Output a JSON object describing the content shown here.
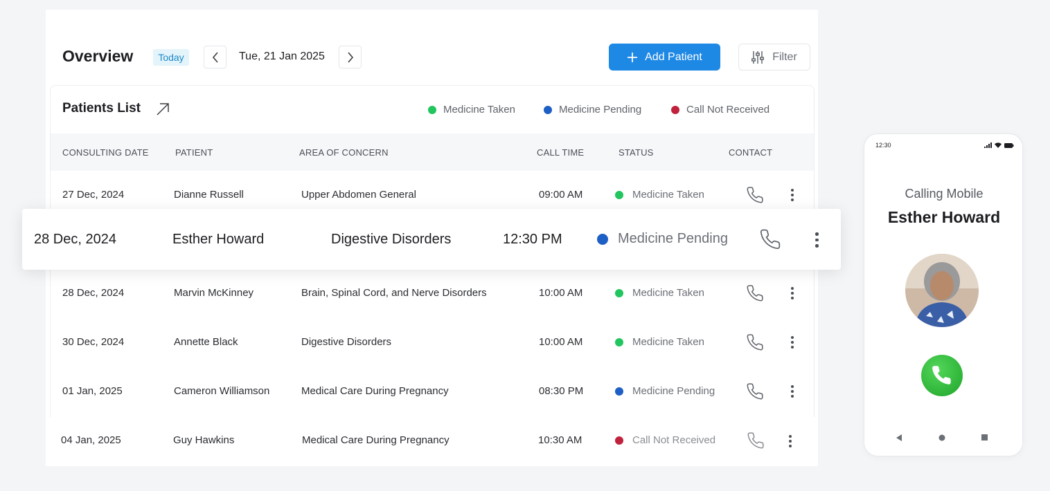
{
  "header": {
    "title": "Overview",
    "today_label": "Today",
    "date": "Tue, 21 Jan 2025",
    "add_button_label": "Add Patient",
    "filter_label": "Filter"
  },
  "patients_list": {
    "title": "Patients List",
    "legend": [
      {
        "label": "Medicine Taken",
        "color": "#22c55e"
      },
      {
        "label": "Medicine Pending",
        "color": "#1d5fc4"
      },
      {
        "label": "Call Not Received",
        "color": "#c0213c"
      }
    ],
    "columns": [
      "CONSULTING DATE",
      "PATIENT",
      "AREA OF CONCERN",
      "CALL TIME",
      "STATUS",
      "CONTACT"
    ],
    "rows": [
      {
        "date": "27 Dec, 2024",
        "patient": "Dianne Russell",
        "concern": "Upper Abdomen General",
        "time": "09:00 AM",
        "status": "Medicine Taken",
        "status_color": "#22c55e"
      },
      {
        "date": "28 Dec, 2024",
        "patient": "Esther Howard",
        "concern": "Digestive Disorders",
        "time": "12:30 PM",
        "status": "Medicine Pending",
        "status_color": "#1d5fc4"
      },
      {
        "date": "28 Dec, 2024",
        "patient": "Marvin McKinney",
        "concern": "Brain, Spinal Cord, and Nerve Disorders",
        "time": "10:00 AM",
        "status": "Medicine Taken",
        "status_color": "#22c55e"
      },
      {
        "date": "30 Dec, 2024",
        "patient": "Annette Black",
        "concern": "Digestive Disorders",
        "time": "10:00 AM",
        "status": "Medicine Taken",
        "status_color": "#22c55e"
      },
      {
        "date": "01 Jan, 2025",
        "patient": "Cameron Williamson",
        "concern": "Medical Care During Pregnancy",
        "time": "08:30 PM",
        "status": "Medicine Pending",
        "status_color": "#1d5fc4"
      },
      {
        "date": "04 Jan, 2025",
        "patient": "Guy Hawkins",
        "concern": "Medical Care During Pregnancy",
        "time": "10:30 AM",
        "status": "Call Not Received",
        "status_color": "#c0213c"
      }
    ]
  },
  "phone": {
    "time": "12:30",
    "calling_label": "Calling Mobile",
    "caller_name": "Esther Howard"
  },
  "colors": {
    "accent": "#1e88e5",
    "answer_green": "#2bb532"
  }
}
